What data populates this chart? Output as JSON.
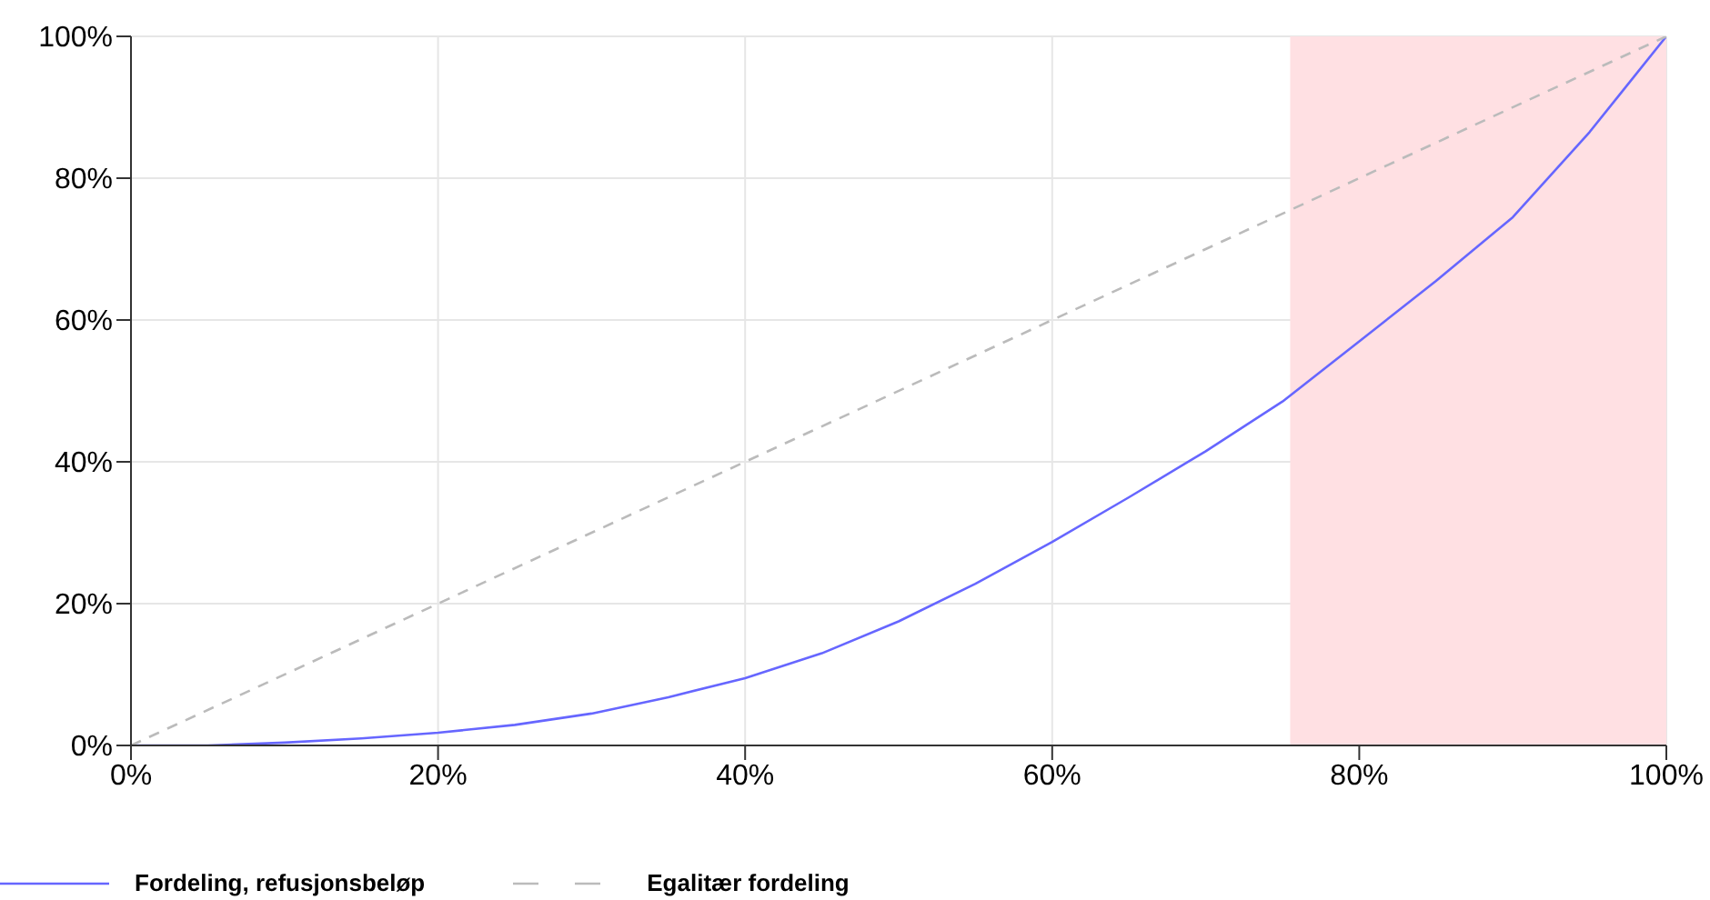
{
  "chart_data": {
    "type": "line",
    "x": [
      0,
      5,
      10,
      15,
      20,
      25,
      30,
      35,
      40,
      45,
      50,
      55,
      60,
      65,
      70,
      75,
      80,
      85,
      90,
      95,
      100
    ],
    "series": [
      {
        "name": "Fordeling, refusjonsbeløp",
        "color": "#6666ff",
        "values": [
          0,
          0,
          0.4,
          1,
          1.8,
          2.9,
          4.5,
          6.8,
          9.5,
          13,
          17.5,
          22.8,
          28.7,
          35,
          41.5,
          48.5,
          57,
          65.5,
          74.5,
          86.5,
          100
        ]
      },
      {
        "name": "Egalitær fordeling",
        "color": "#bbbbbb",
        "line_style": "dashed",
        "x": [
          0,
          100
        ],
        "values": [
          0,
          100
        ]
      }
    ],
    "xlim": [
      0,
      100
    ],
    "ylim": [
      0,
      100
    ],
    "xticks": [
      {
        "value": 0,
        "label": "0%"
      },
      {
        "value": 20,
        "label": "20%"
      },
      {
        "value": 40,
        "label": "40%"
      },
      {
        "value": 60,
        "label": "60%"
      },
      {
        "value": 80,
        "label": "80%"
      },
      {
        "value": 100,
        "label": "100%"
      }
    ],
    "yticks": [
      {
        "value": 0,
        "label": "0%"
      },
      {
        "value": 20,
        "label": "20%"
      },
      {
        "value": 40,
        "label": "40%"
      },
      {
        "value": 60,
        "label": "60%"
      },
      {
        "value": 80,
        "label": "80%"
      },
      {
        "value": 100,
        "label": "100%"
      }
    ],
    "bands": [
      {
        "axis": "x",
        "from": 75.5,
        "to": 100,
        "color": "#ffe0e3"
      }
    ],
    "grid": true,
    "legend": "bottom",
    "marker": "none"
  }
}
